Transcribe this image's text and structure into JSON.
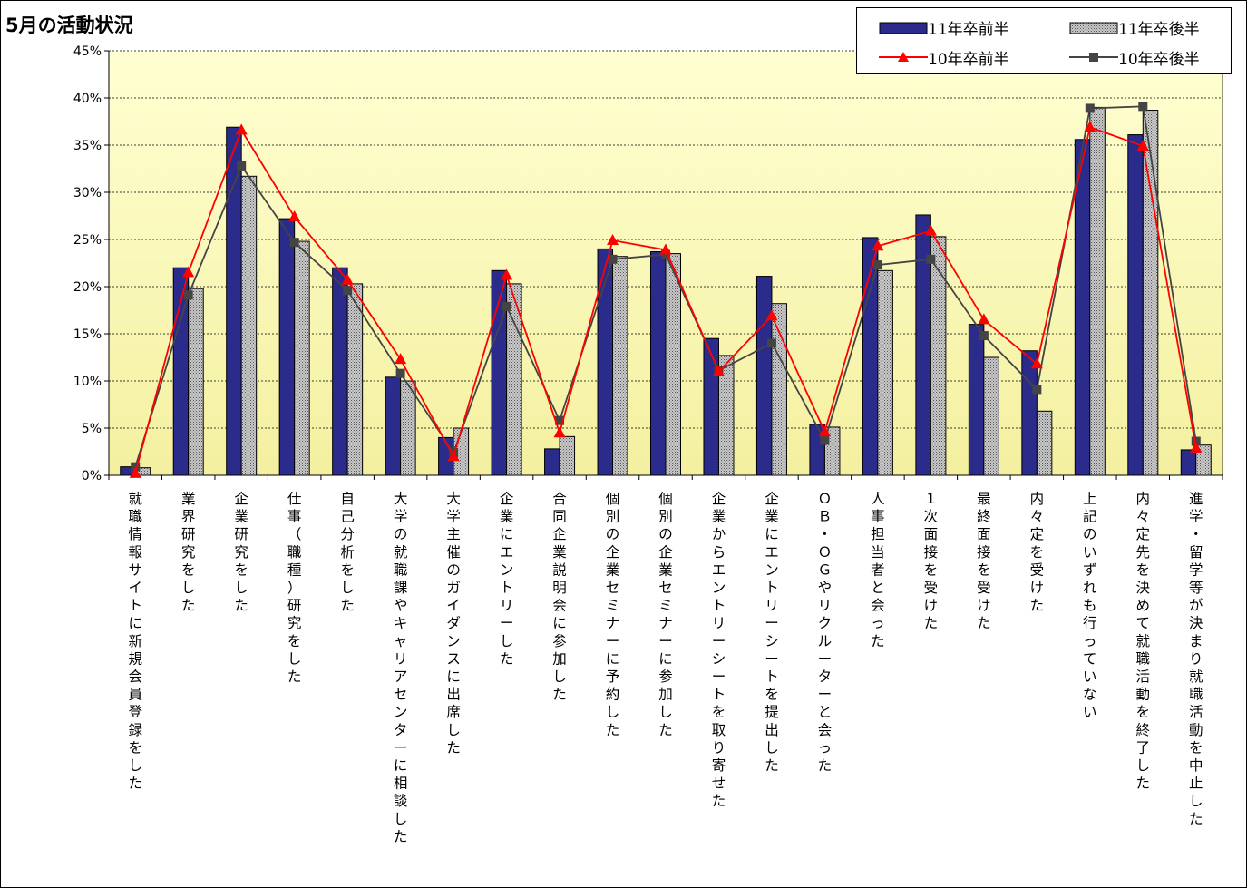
{
  "colors": {
    "series1": "#2b2b8c",
    "series2": "#a9a9a9",
    "series3": "#ff0000",
    "series4": "#444444",
    "plot_bg_top": "#ffffd2",
    "plot_bg_bottom": "#f4f0a0"
  },
  "chart_data": {
    "type": "bar",
    "title": "5月の活動状況",
    "ylim": [
      0,
      45
    ],
    "yticks": [
      "0%",
      "5%",
      "10%",
      "15%",
      "20%",
      "25%",
      "30%",
      "35%",
      "40%",
      "45%"
    ],
    "grid": true,
    "legend_position": "top-right",
    "categories": [
      "就職情報サイトに新規会員登録をした",
      "業界研究をした",
      "企業研究をした",
      "仕事（職種）研究をした",
      "自己分析をした",
      "大学の就職課やキャリアセンターに相談した",
      "大学主催のガイダンスに出席した",
      "企業にエントリーした",
      "合同企業説明会に参加した",
      "個別の企業セミナーに予約した",
      "個別の企業セミナーに参加した",
      "企業からエントリーシートを取り寄せた",
      "企業にエントリーシートを提出した",
      "ＯＢ・ＯＧやリクルーターと会った",
      "人事担当者と会った",
      "１次面接を受けた",
      "最終面接を受けた",
      "内々定を受けた",
      "上記のいずれも行っていない",
      "内々定先を決めて就職活動を終了した",
      "進学・留学等が決まり就職活動を中止した"
    ],
    "series": [
      {
        "name": "11年卒前半",
        "kind": "bar",
        "values": [
          0.9,
          22.0,
          36.9,
          27.2,
          22.0,
          10.4,
          4.0,
          21.7,
          2.8,
          24.0,
          23.7,
          14.5,
          21.1,
          5.4,
          25.2,
          27.6,
          16.0,
          13.2,
          35.6,
          36.1,
          2.7
        ]
      },
      {
        "name": "11年卒後半",
        "kind": "bar",
        "values": [
          0.8,
          19.8,
          31.7,
          24.8,
          20.3,
          10.0,
          5.0,
          20.3,
          4.1,
          23.2,
          23.5,
          12.7,
          18.2,
          5.1,
          21.7,
          25.3,
          12.5,
          6.8,
          39.0,
          38.7,
          3.2
        ]
      },
      {
        "name": "10年卒前半",
        "kind": "line",
        "values": [
          0.2,
          21.5,
          36.6,
          27.4,
          20.7,
          12.3,
          2.0,
          21.2,
          4.5,
          24.9,
          23.9,
          11.0,
          16.9,
          4.6,
          24.3,
          25.9,
          16.5,
          11.8,
          36.9,
          34.9,
          2.9
        ]
      },
      {
        "name": "10年卒後半",
        "kind": "line",
        "values": [
          0.9,
          19.1,
          32.8,
          24.7,
          19.6,
          10.8,
          2.4,
          17.9,
          5.8,
          22.9,
          23.4,
          11.1,
          14.0,
          3.7,
          22.3,
          22.9,
          14.8,
          9.1,
          38.9,
          39.1,
          3.6
        ]
      }
    ]
  }
}
